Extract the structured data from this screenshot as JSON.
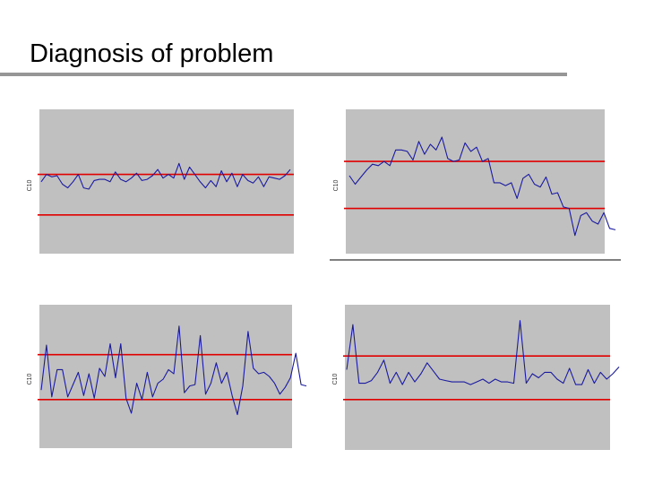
{
  "title": "Diagnosis of problem",
  "colors": {
    "plot_bg": "#c0c0c0",
    "series": "#1a1aa0",
    "limit": "#e00000",
    "rule": "#969696"
  },
  "chart_data": [
    {
      "type": "line",
      "ylabel": "C10",
      "ylim": [
        0,
        100
      ],
      "limits": {
        "upper": 66,
        "lower": 33
      },
      "series": [
        {
          "values": [
            60,
            66,
            64,
            65,
            58,
            55,
            60,
            66,
            55,
            54,
            61,
            62,
            62,
            60,
            68,
            62,
            60,
            63,
            67,
            61,
            62,
            65,
            70,
            63,
            66,
            63,
            75,
            62,
            72,
            66,
            60,
            55,
            61,
            56,
            69,
            60,
            67,
            56,
            66,
            61,
            59,
            64,
            56,
            64,
            63,
            62,
            65,
            70
          ]
        }
      ]
    },
    {
      "type": "line",
      "ylabel": "C10",
      "ylim": [
        0,
        100
      ],
      "limits": {
        "upper": 66,
        "lower": 33
      },
      "series": [
        {
          "values": [
            56,
            50,
            55,
            60,
            64,
            63,
            66,
            63,
            74,
            74,
            73,
            67,
            80,
            71,
            78,
            74,
            83,
            68,
            66,
            67,
            79,
            73,
            76,
            66,
            68,
            51,
            51,
            49,
            51,
            40,
            54,
            57,
            50,
            48,
            55,
            43,
            44,
            34,
            33,
            14,
            28,
            30,
            24,
            22,
            30,
            19,
            18
          ]
        }
      ]
    },
    {
      "type": "line",
      "ylabel": "C10",
      "ylim": [
        0,
        100
      ],
      "limits": {
        "upper": 66,
        "lower": 33
      },
      "series": [
        {
          "values": [
            40,
            73,
            35,
            55,
            55,
            35,
            44,
            53,
            36,
            52,
            34,
            56,
            50,
            74,
            49,
            74,
            34,
            23,
            45,
            33,
            53,
            35,
            45,
            48,
            55,
            52,
            87,
            38,
            43,
            44,
            80,
            37,
            45,
            60,
            45,
            53,
            36,
            22,
            43,
            83,
            56,
            52,
            53,
            50,
            45,
            37,
            42,
            49,
            67,
            44,
            43
          ]
        }
      ]
    },
    {
      "type": "line",
      "ylabel": "C10",
      "ylim": [
        0,
        100
      ],
      "limits": {
        "upper": 65,
        "lower": 33
      },
      "series": [
        {
          "values": [
            55,
            88,
            45,
            45,
            47,
            53,
            62,
            45,
            53,
            44,
            53,
            46,
            52,
            60,
            54,
            48,
            47,
            46,
            46,
            46,
            44,
            46,
            48,
            45,
            48,
            46,
            46,
            45,
            91,
            45,
            52,
            49,
            53,
            53,
            48,
            45,
            56,
            44,
            44,
            55,
            45,
            53,
            48,
            52,
            57
          ]
        }
      ]
    }
  ]
}
